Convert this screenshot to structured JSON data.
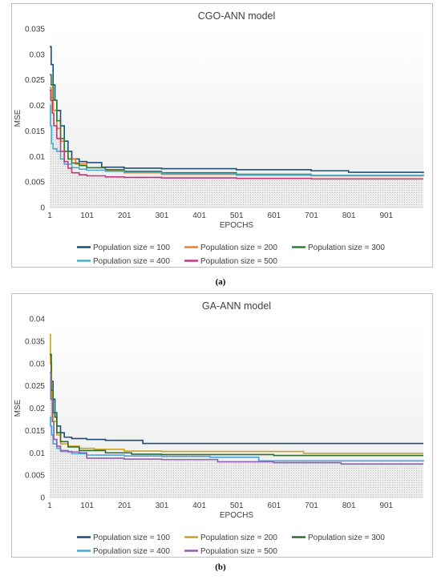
{
  "chart_data": [
    {
      "type": "line",
      "title": "CGO-ANN model",
      "xlabel": "EPOCHS",
      "ylabel": "MSE",
      "xlim": [
        1,
        1000
      ],
      "ylim": [
        0,
        0.035
      ],
      "yticks": [
        "0",
        "0.005",
        "0.01",
        "0.015",
        "0.02",
        "0.025",
        "0.03",
        "0.035"
      ],
      "ytick_values": [
        0,
        0.005,
        0.01,
        0.015,
        0.02,
        0.025,
        0.03,
        0.035
      ],
      "xticks": [
        "1",
        "101",
        "201",
        "301",
        "401",
        "501",
        "601",
        "701",
        "801",
        "901"
      ],
      "xtick_values": [
        1,
        101,
        201,
        301,
        401,
        501,
        601,
        701,
        801,
        901
      ],
      "legend_position": "bottom",
      "grid": false,
      "caption": "(a)",
      "series": [
        {
          "name": "Population size = 100",
          "color": "#1f4e79",
          "x": [
            1,
            5,
            10,
            15,
            20,
            30,
            40,
            50,
            60,
            80,
            100,
            140,
            200,
            300,
            500,
            700,
            800,
            1000
          ],
          "y": [
            0.0315,
            0.028,
            0.024,
            0.021,
            0.019,
            0.016,
            0.013,
            0.011,
            0.0095,
            0.009,
            0.0088,
            0.0079,
            0.0077,
            0.0076,
            0.0074,
            0.0072,
            0.0069,
            0.0067
          ]
        },
        {
          "name": "Population size = 200",
          "color": "#ed7d31",
          "x": [
            1,
            5,
            10,
            20,
            30,
            40,
            50,
            70,
            100,
            150,
            200,
            300,
            500,
            700,
            1000
          ],
          "y": [
            0.0235,
            0.0215,
            0.019,
            0.0155,
            0.013,
            0.011,
            0.0095,
            0.0085,
            0.0078,
            0.0072,
            0.0068,
            0.0065,
            0.0063,
            0.0062,
            0.0061
          ]
        },
        {
          "name": "Population size = 300",
          "color": "#2e7d32",
          "x": [
            1,
            5,
            10,
            20,
            30,
            40,
            50,
            60,
            80,
            100,
            150,
            200,
            300,
            500,
            700,
            1000
          ],
          "y": [
            0.026,
            0.024,
            0.021,
            0.017,
            0.0135,
            0.011,
            0.0095,
            0.0087,
            0.0082,
            0.0078,
            0.0074,
            0.0071,
            0.0068,
            0.0065,
            0.0063,
            0.0062
          ]
        },
        {
          "name": "Population size = 400",
          "color": "#4bacc6",
          "x": [
            1,
            3,
            6,
            10,
            20,
            30,
            40,
            60,
            80,
            100,
            150,
            200,
            300,
            500,
            700,
            1000
          ],
          "y": [
            0.02,
            0.016,
            0.0125,
            0.0115,
            0.011,
            0.0095,
            0.0085,
            0.0078,
            0.0075,
            0.0073,
            0.0071,
            0.0069,
            0.0066,
            0.0064,
            0.0063,
            0.0062
          ]
        },
        {
          "name": "Population size = 500",
          "color": "#c0397e",
          "x": [
            1,
            4,
            8,
            12,
            20,
            30,
            40,
            50,
            60,
            80,
            100,
            150,
            200,
            300,
            500,
            700,
            1000
          ],
          "y": [
            0.023,
            0.021,
            0.0185,
            0.016,
            0.0135,
            0.011,
            0.009,
            0.0077,
            0.0068,
            0.0064,
            0.0062,
            0.006,
            0.0059,
            0.0058,
            0.0057,
            0.0056,
            0.0056
          ]
        }
      ]
    },
    {
      "type": "line",
      "title": "GA-ANN model",
      "xlabel": "EPOCHS",
      "ylabel": "MSE",
      "xlim": [
        1,
        1000
      ],
      "ylim": [
        0,
        0.04
      ],
      "yticks": [
        "0",
        "0.005",
        "0.01",
        "0.015",
        "0.02",
        "0.025",
        "0.03",
        "0.035",
        "0.04"
      ],
      "ytick_values": [
        0,
        0.005,
        0.01,
        0.015,
        0.02,
        0.025,
        0.03,
        0.035,
        0.04
      ],
      "xticks": [
        "1",
        "101",
        "201",
        "301",
        "401",
        "501",
        "601",
        "701",
        "801",
        "901"
      ],
      "xtick_values": [
        1,
        101,
        201,
        301,
        401,
        501,
        601,
        701,
        801,
        901
      ],
      "legend_position": "bottom",
      "grid": false,
      "caption": "(b)",
      "series": [
        {
          "name": "Population size = 100",
          "color": "#1f4e79",
          "x": [
            1,
            5,
            10,
            15,
            20,
            30,
            40,
            60,
            100,
            150,
            200,
            250,
            1000
          ],
          "y": [
            0.032,
            0.026,
            0.022,
            0.018,
            0.016,
            0.0145,
            0.0135,
            0.0132,
            0.013,
            0.0128,
            0.0128,
            0.0121,
            0.0121
          ]
        },
        {
          "name": "Population size = 200",
          "color": "#c9a227",
          "x": [
            1,
            3,
            6,
            10,
            20,
            30,
            50,
            80,
            120,
            200,
            300,
            500,
            680,
            1000
          ],
          "y": [
            0.0365,
            0.03,
            0.022,
            0.017,
            0.014,
            0.012,
            0.0115,
            0.011,
            0.0108,
            0.0104,
            0.0103,
            0.0103,
            0.0099,
            0.0099
          ]
        },
        {
          "name": "Population size = 300",
          "color": "#2e6b2e",
          "x": [
            1,
            5,
            10,
            20,
            30,
            50,
            80,
            150,
            220,
            300,
            400,
            600,
            1000
          ],
          "y": [
            0.032,
            0.024,
            0.019,
            0.0145,
            0.0125,
            0.0113,
            0.0105,
            0.01,
            0.0097,
            0.0096,
            0.0096,
            0.0094,
            0.0094
          ]
        },
        {
          "name": "Population size = 400",
          "color": "#4ba3d9",
          "x": [
            1,
            3,
            6,
            10,
            20,
            30,
            60,
            100,
            200,
            300,
            400,
            430,
            560,
            1000
          ],
          "y": [
            0.018,
            0.016,
            0.014,
            0.012,
            0.011,
            0.0103,
            0.0098,
            0.0095,
            0.0093,
            0.0092,
            0.0092,
            0.009,
            0.0082,
            0.008
          ]
        },
        {
          "name": "Population size = 500",
          "color": "#8e5db5",
          "x": [
            1,
            4,
            8,
            12,
            20,
            30,
            50,
            80,
            100,
            200,
            300,
            450,
            600,
            780,
            1000
          ],
          "y": [
            0.028,
            0.022,
            0.017,
            0.013,
            0.0115,
            0.0105,
            0.0102,
            0.01,
            0.0088,
            0.0086,
            0.0085,
            0.008,
            0.0078,
            0.0075,
            0.0075
          ]
        }
      ]
    }
  ]
}
